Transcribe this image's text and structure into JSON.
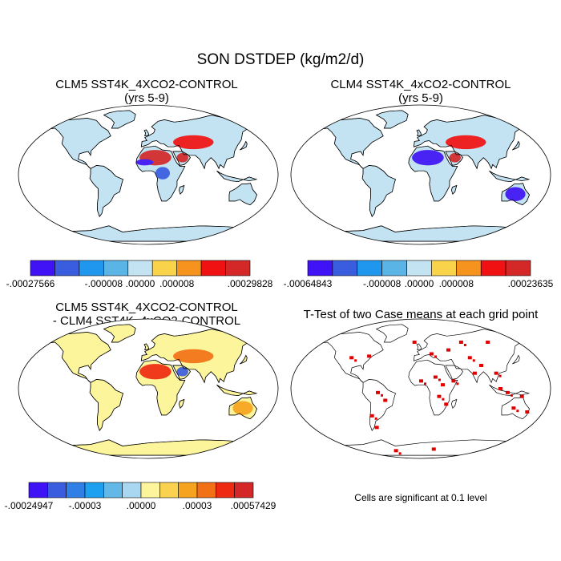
{
  "main_title": "SON DSTDEP (kg/m2/d)",
  "panels": [
    {
      "title": "CLM5 SST4K_4XCO2-CONTROL\n(yrs 5-9)"
    },
    {
      "title": "CLM4 SST4K_4xCO2-CONTROL\n(yrs 5-9)"
    },
    {
      "title": "CLM5 SST4K_4XCO2-CONTROL\n- CLM4 SST4K_4xCO2-CONTROL"
    },
    {
      "title": "T-Test of two Case means at each grid point"
    }
  ],
  "significance_note": "Cells are significant at 0.1 level",
  "colors": {
    "ocean": "#ffffff",
    "coast": "#000000",
    "significant": "#e00000"
  },
  "chart_data": [
    {
      "type": "heatmap",
      "title": "CLM5 SST4K_4XCO2-CONTROL (yrs 5-9)",
      "colorbar": {
        "labels": [
          "-.00027566",
          "-.000008",
          ".00000",
          ".000008",
          ".00029828"
        ],
        "colors": [
          "#3f13f5",
          "#3a5de0",
          "#1f97ee",
          "#5ab4e6",
          "#c3e3f2",
          "#f9d44a",
          "#f5931e",
          "#f01212",
          "#d42828"
        ]
      },
      "land_default": "#c3e3f2",
      "regions": [
        {
          "name": "Sahara",
          "value": "high",
          "color": "#d42828"
        },
        {
          "name": "Arabia",
          "value": "high",
          "color": "#d42828"
        },
        {
          "name": "Central Asia",
          "value": "mixed",
          "color": "#f01212"
        },
        {
          "name": "Northern Africa edge",
          "value": "low",
          "color": "#3f13f5"
        },
        {
          "name": "Central Africa",
          "value": "low",
          "color": "#3a5de0"
        },
        {
          "name": "Australia",
          "value": "near zero",
          "color": "#c3e3f2"
        }
      ]
    },
    {
      "type": "heatmap",
      "title": "CLM4 SST4K_4xCO2-CONTROL (yrs 5-9)",
      "colorbar": {
        "labels": [
          "-.00064843",
          "-.000008",
          ".00000",
          ".000008",
          ".00023635"
        ],
        "colors": [
          "#3f13f5",
          "#3a5de0",
          "#1f97ee",
          "#5ab4e6",
          "#c3e3f2",
          "#f9d44a",
          "#f5931e",
          "#f01212",
          "#d42828"
        ]
      },
      "land_default": "#c3e3f2",
      "regions": [
        {
          "name": "Sahara",
          "value": "low",
          "color": "#3f13f5"
        },
        {
          "name": "Arabia",
          "value": "high",
          "color": "#d42828"
        },
        {
          "name": "Central Asia",
          "value": "mixed",
          "color": "#f01212"
        },
        {
          "name": "Australia",
          "value": "low",
          "color": "#3f13f5"
        }
      ]
    },
    {
      "type": "heatmap",
      "title": "CLM5 SST4K_4XCO2-CONTROL - CLM4 SST4K_4xCO2-CONTROL",
      "colorbar": {
        "labels": [
          "-.00024947",
          "-.00003",
          ".00000",
          ".00003",
          ".00057429"
        ],
        "colors": [
          "#3f13f5",
          "#3a5de0",
          "#2f7fe6",
          "#1ea0f0",
          "#62b9e8",
          "#a9d6f0",
          "#fdf59b",
          "#fbd24f",
          "#f6a31f",
          "#f27016",
          "#ef2a12",
          "#d42828"
        ]
      },
      "land_default": "#fdf59b",
      "regions": [
        {
          "name": "Sahara",
          "value": "high",
          "color": "#ef2a12"
        },
        {
          "name": "Arabia",
          "value": "mixed",
          "color": "#3a5de0"
        },
        {
          "name": "Central Asia",
          "value": "mixed",
          "color": "#f27016"
        },
        {
          "name": "Australia",
          "value": "high",
          "color": "#f6a31f"
        }
      ]
    },
    {
      "type": "heatmap",
      "title": "T-Test of two Case means at each grid point",
      "land_default": "#ffffff",
      "significant_color": "#e00000"
    }
  ]
}
